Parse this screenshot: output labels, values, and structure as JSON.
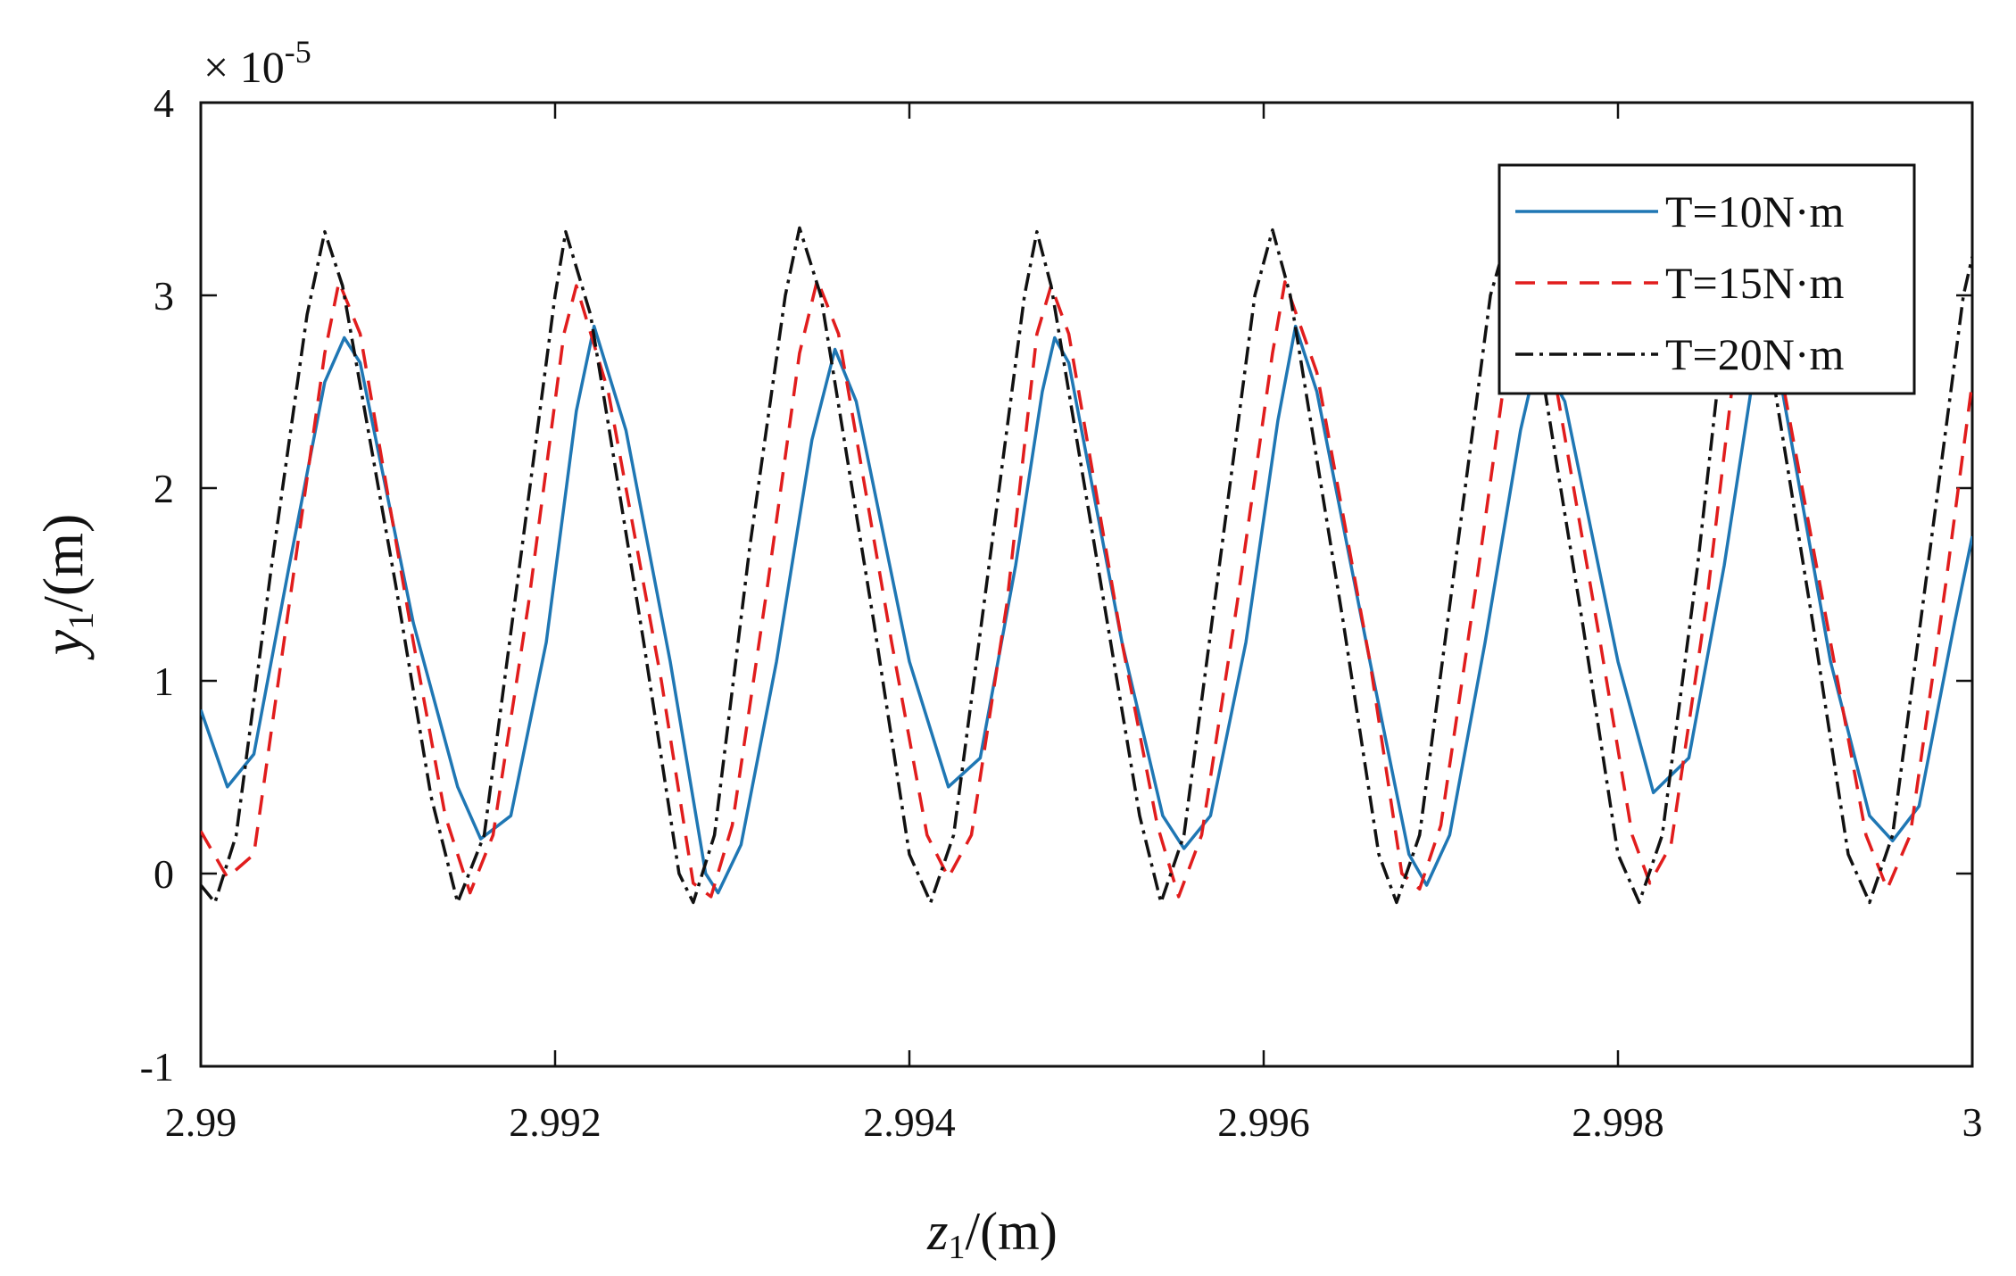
{
  "chart_data": {
    "type": "line",
    "x_range": [
      2.99,
      3
    ],
    "ylim": [
      -1,
      4
    ],
    "y_exponent_label": "× 10",
    "y_exponent_power": "-5",
    "xlabel": {
      "var": "z",
      "sub": "1",
      "unit": "/(m)"
    },
    "ylabel": {
      "var": "y",
      "sub": "1",
      "unit": "/(m)"
    },
    "x_ticks": [
      {
        "value": 2.99,
        "label": "2.99"
      },
      {
        "value": 2.992,
        "label": "2.992"
      },
      {
        "value": 2.994,
        "label": "2.994"
      },
      {
        "value": 2.996,
        "label": "2.996"
      },
      {
        "value": 2.998,
        "label": "2.998"
      },
      {
        "value": 3,
        "label": "3"
      }
    ],
    "y_ticks": [
      {
        "value": -1,
        "label": "-1"
      },
      {
        "value": 0,
        "label": "0"
      },
      {
        "value": 1,
        "label": "1"
      },
      {
        "value": 2,
        "label": "2"
      },
      {
        "value": 3,
        "label": "3"
      },
      {
        "value": 4,
        "label": "4"
      }
    ],
    "grid": false,
    "legend_position": "top-right",
    "series": [
      {
        "name": "T=10N·m",
        "color": "#1f77b4",
        "dash": "solid",
        "points": [
          [
            2.99,
            0.85
          ],
          [
            2.99015,
            0.45
          ],
          [
            2.9903,
            0.62
          ],
          [
            2.9905,
            1.6
          ],
          [
            2.9907,
            2.55
          ],
          [
            2.99081,
            2.78
          ],
          [
            2.9909,
            2.65
          ],
          [
            2.9912,
            1.3
          ],
          [
            2.99145,
            0.45
          ],
          [
            2.99158,
            0.18
          ],
          [
            2.99175,
            0.3
          ],
          [
            2.99195,
            1.2
          ],
          [
            2.99212,
            2.4
          ],
          [
            2.99222,
            2.84
          ],
          [
            2.9924,
            2.3
          ],
          [
            2.99265,
            1.1
          ],
          [
            2.99285,
            0.0
          ],
          [
            2.99292,
            -0.1
          ],
          [
            2.99305,
            0.15
          ],
          [
            2.99325,
            1.1
          ],
          [
            2.99345,
            2.25
          ],
          [
            2.99358,
            2.72
          ],
          [
            2.9937,
            2.45
          ],
          [
            2.994,
            1.1
          ],
          [
            2.99422,
            0.45
          ],
          [
            2.9944,
            0.6
          ],
          [
            2.9946,
            1.6
          ],
          [
            2.99475,
            2.5
          ],
          [
            2.99482,
            2.78
          ],
          [
            2.9949,
            2.65
          ],
          [
            2.9952,
            1.2
          ],
          [
            2.99543,
            0.3
          ],
          [
            2.99555,
            0.13
          ],
          [
            2.9957,
            0.3
          ],
          [
            2.9959,
            1.2
          ],
          [
            2.99608,
            2.35
          ],
          [
            2.99618,
            2.84
          ],
          [
            2.9963,
            2.5
          ],
          [
            2.9966,
            1.1
          ],
          [
            2.99682,
            0.1
          ],
          [
            2.99692,
            -0.06
          ],
          [
            2.99705,
            0.2
          ],
          [
            2.99725,
            1.2
          ],
          [
            2.99745,
            2.3
          ],
          [
            2.99755,
            2.7
          ],
          [
            2.9977,
            2.45
          ],
          [
            2.998,
            1.1
          ],
          [
            2.9982,
            0.42
          ],
          [
            2.9984,
            0.6
          ],
          [
            2.9986,
            1.6
          ],
          [
            2.99875,
            2.5
          ],
          [
            2.99883,
            2.78
          ],
          [
            2.9989,
            2.65
          ],
          [
            2.9992,
            1.1
          ],
          [
            2.99942,
            0.3
          ],
          [
            2.99955,
            0.17
          ],
          [
            2.9997,
            0.35
          ],
          [
            2.9999,
            1.3
          ],
          [
            3.0,
            1.75
          ]
        ]
      },
      {
        "name": "T=15N·m",
        "color": "#e11d1d",
        "dash": "22 14",
        "points": [
          [
            2.99,
            0.22
          ],
          [
            2.99015,
            -0.02
          ],
          [
            2.9903,
            0.1
          ],
          [
            2.9905,
            1.4
          ],
          [
            2.9907,
            2.7
          ],
          [
            2.99078,
            3.07
          ],
          [
            2.9909,
            2.8
          ],
          [
            2.9912,
            1.2
          ],
          [
            2.99138,
            0.3
          ],
          [
            2.99152,
            -0.1
          ],
          [
            2.99165,
            0.2
          ],
          [
            2.99185,
            1.4
          ],
          [
            2.99205,
            2.8
          ],
          [
            2.99212,
            3.05
          ],
          [
            2.9923,
            2.5
          ],
          [
            2.9926,
            1.0
          ],
          [
            2.99278,
            -0.05
          ],
          [
            2.99288,
            -0.12
          ],
          [
            2.993,
            0.25
          ],
          [
            2.9932,
            1.5
          ],
          [
            2.99338,
            2.7
          ],
          [
            2.99348,
            3.08
          ],
          [
            2.9936,
            2.8
          ],
          [
            2.9939,
            1.2
          ],
          [
            2.9941,
            0.2
          ],
          [
            2.99422,
            -0.02
          ],
          [
            2.99435,
            0.2
          ],
          [
            2.99455,
            1.4
          ],
          [
            2.99472,
            2.8
          ],
          [
            2.9948,
            3.05
          ],
          [
            2.9949,
            2.8
          ],
          [
            2.9952,
            1.2
          ],
          [
            2.9954,
            0.25
          ],
          [
            2.99552,
            -0.12
          ],
          [
            2.99565,
            0.2
          ],
          [
            2.99585,
            1.4
          ],
          [
            2.99605,
            2.7
          ],
          [
            2.99612,
            3.07
          ],
          [
            2.9963,
            2.6
          ],
          [
            2.9966,
            1.1
          ],
          [
            2.99678,
            0.0
          ],
          [
            2.99688,
            -0.08
          ],
          [
            2.997,
            0.25
          ],
          [
            2.9972,
            1.5
          ],
          [
            2.99738,
            2.7
          ],
          [
            2.99748,
            3.08
          ],
          [
            2.9976,
            2.8
          ],
          [
            2.9979,
            1.2
          ],
          [
            2.99808,
            0.2
          ],
          [
            2.99818,
            -0.05
          ],
          [
            2.9983,
            0.15
          ],
          [
            2.9985,
            1.4
          ],
          [
            2.99868,
            2.8
          ],
          [
            2.99878,
            3.05
          ],
          [
            2.9989,
            2.7
          ],
          [
            2.9992,
            1.2
          ],
          [
            2.9994,
            0.2
          ],
          [
            2.99952,
            -0.08
          ],
          [
            2.99965,
            0.2
          ],
          [
            2.99985,
            1.5
          ],
          [
            3.0,
            2.55
          ]
        ]
      },
      {
        "name": "T=20N·m",
        "color": "#111111",
        "dash": "20 7 4 7",
        "points": [
          [
            2.99,
            -0.06
          ],
          [
            2.99008,
            -0.15
          ],
          [
            2.9902,
            0.2
          ],
          [
            2.9904,
            1.6
          ],
          [
            2.9906,
            2.9
          ],
          [
            2.9907,
            3.33
          ],
          [
            2.9908,
            3.05
          ],
          [
            2.9911,
            1.5
          ],
          [
            2.9913,
            0.4
          ],
          [
            2.99145,
            -0.15
          ],
          [
            2.9916,
            0.2
          ],
          [
            2.9918,
            1.6
          ],
          [
            2.992,
            3.0
          ],
          [
            2.99206,
            3.33
          ],
          [
            2.9922,
            2.9
          ],
          [
            2.9925,
            1.2
          ],
          [
            2.9927,
            0.0
          ],
          [
            2.99278,
            -0.15
          ],
          [
            2.9929,
            0.2
          ],
          [
            2.9931,
            1.7
          ],
          [
            2.9933,
            3.0
          ],
          [
            2.99338,
            3.35
          ],
          [
            2.9935,
            3.0
          ],
          [
            2.9938,
            1.3
          ],
          [
            2.994,
            0.1
          ],
          [
            2.99412,
            -0.15
          ],
          [
            2.99425,
            0.2
          ],
          [
            2.99445,
            1.6
          ],
          [
            2.99465,
            3.0
          ],
          [
            2.99472,
            3.33
          ],
          [
            2.9948,
            3.05
          ],
          [
            2.9951,
            1.4
          ],
          [
            2.9953,
            0.3
          ],
          [
            2.99542,
            -0.15
          ],
          [
            2.99555,
            0.2
          ],
          [
            2.99575,
            1.6
          ],
          [
            2.99595,
            3.0
          ],
          [
            2.99605,
            3.34
          ],
          [
            2.99615,
            3.0
          ],
          [
            2.99645,
            1.3
          ],
          [
            2.99665,
            0.1
          ],
          [
            2.99675,
            -0.15
          ],
          [
            2.99688,
            0.2
          ],
          [
            2.99708,
            1.6
          ],
          [
            2.99728,
            3.0
          ],
          [
            2.99738,
            3.32
          ],
          [
            2.9975,
            3.0
          ],
          [
            2.9978,
            1.3
          ],
          [
            2.998,
            0.1
          ],
          [
            2.99812,
            -0.15
          ],
          [
            2.99825,
            0.2
          ],
          [
            2.99845,
            1.6
          ],
          [
            2.99862,
            3.0
          ],
          [
            2.9987,
            3.33
          ],
          [
            2.9988,
            3.0
          ],
          [
            2.9991,
            1.3
          ],
          [
            2.9993,
            0.1
          ],
          [
            2.99942,
            -0.15
          ],
          [
            2.99955,
            0.2
          ],
          [
            2.99975,
            1.6
          ],
          [
            2.99995,
            3.0
          ],
          [
            3.0,
            3.2
          ]
        ]
      }
    ]
  }
}
